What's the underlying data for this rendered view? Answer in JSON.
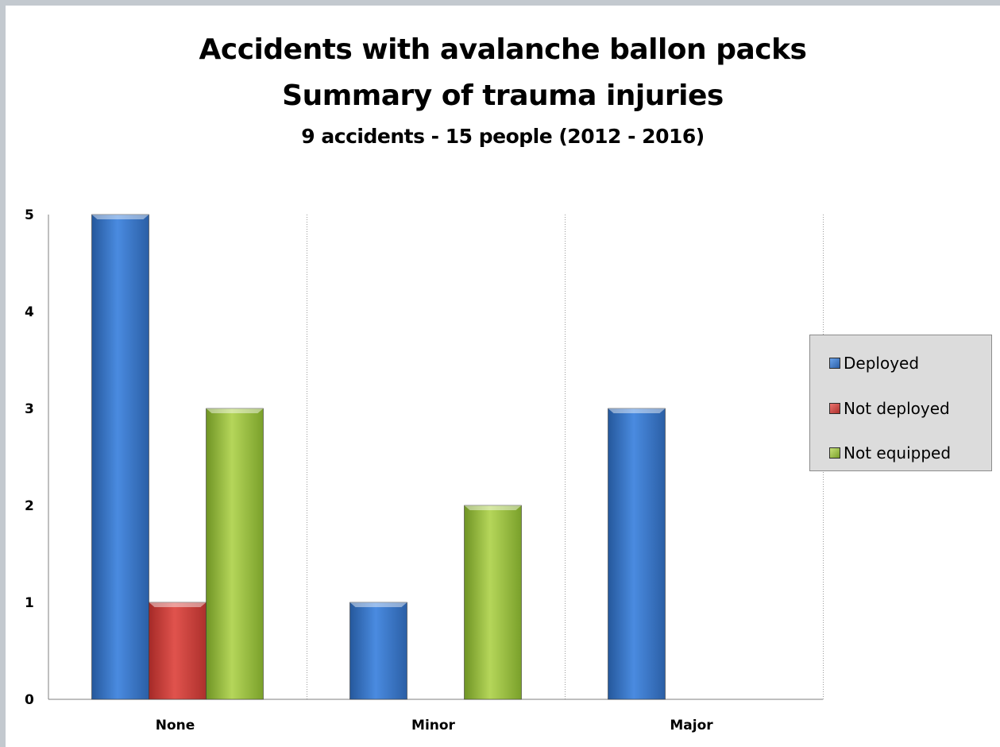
{
  "chart_data": {
    "type": "bar",
    "title": "Accidents with avalanche ballon packs",
    "subtitle_line2": "Summary of trauma injuries",
    "subtitle": "9 accidents - 15 people (2012 - 2016)",
    "xlabel": "",
    "ylabel": "",
    "categories": [
      "None",
      "Minor",
      "Major"
    ],
    "yticks": [
      "0",
      "1",
      "2",
      "3",
      "4",
      "5"
    ],
    "ylim": [
      0,
      5
    ],
    "grid": "vertical dotted separators between categories",
    "legend_position": "right",
    "series": [
      {
        "name": "Deployed",
        "values": [
          5,
          1,
          3
        ],
        "color": "#3a78c9"
      },
      {
        "name": "Not deployed",
        "values": [
          1,
          0,
          0
        ],
        "color": "#c9403c"
      },
      {
        "name": "Not equipped",
        "values": [
          3,
          2,
          0
        ],
        "color": "#92b83a"
      }
    ]
  }
}
